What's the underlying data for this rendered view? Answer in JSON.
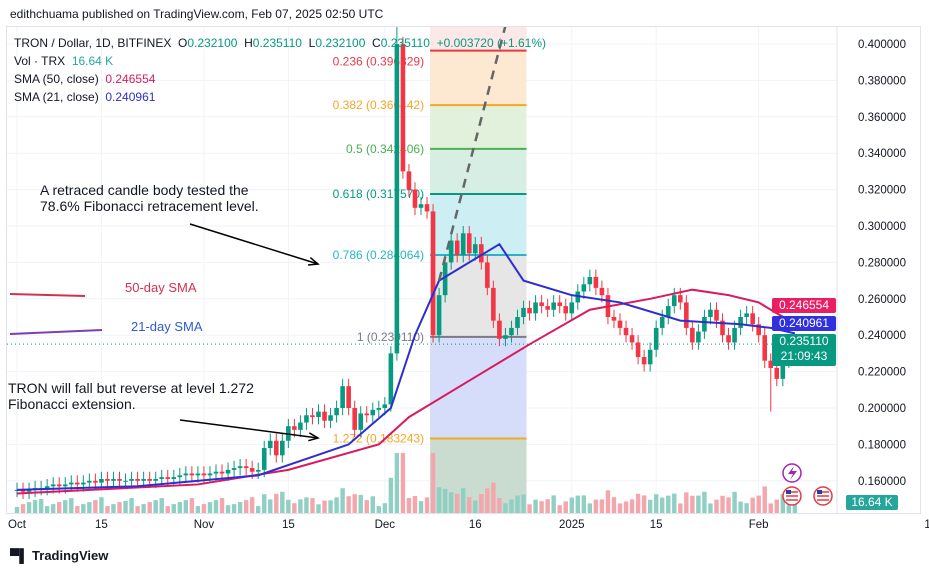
{
  "header": {
    "published": "edithchuama published on TradingView.com, Feb 07, 2025 02:50 UTC"
  },
  "legend": {
    "symbol": "TRON / Dollar, 1D, BITFINEX",
    "o_label": "O",
    "o": "0.232100",
    "h_label": "H",
    "h": "0.235110",
    "l_label": "L",
    "l": "0.232100",
    "c_label": "C",
    "c": "0.235110",
    "change": "+0.003720 (+1.61%)",
    "vol_label": "Vol · TRX",
    "vol": "16.64 K",
    "sma50_label": "SMA (50, close)",
    "sma50": "0.246554",
    "sma21_label": "SMA (21, close)",
    "sma21": "0.240961"
  },
  "price_tags": {
    "sma50": "0.246554",
    "sma21": "0.240961",
    "last": "0.235110",
    "countdown": "21:09:43",
    "volume": "16.64 K"
  },
  "annotations": {
    "fib_note_1": "A retraced candle body tested the",
    "fib_note_2": "78.6% Fibonacci retracement level.",
    "sma50": "50-day SMA",
    "sma21": "21-day SMA",
    "ext_note_1": "TRON will fall but reverse at level 1.272",
    "ext_note_2": "Fibonacci extension."
  },
  "footer": {
    "brand": "TradingView"
  },
  "colors": {
    "up": "#089981",
    "down": "#f23645",
    "sma50": "#d81b60",
    "sma21": "#2e2ed0",
    "grid": "#f0f3fa"
  },
  "icons": [
    "lightning-icon",
    "us-flag-icon",
    "us-flag-icon"
  ],
  "chart_data": {
    "type": "candlestick",
    "start_date": "2024-10-01",
    "ylim": [
      0.15,
      0.41
    ],
    "yticks": [
      "0.400000",
      "0.380000",
      "0.360000",
      "0.340000",
      "0.320000",
      "0.300000",
      "0.280000",
      "0.260000",
      "0.240000",
      "0.220000",
      "0.200000",
      "0.180000",
      "0.160000"
    ],
    "xticks": [
      {
        "label": "Oct",
        "day": 0
      },
      {
        "label": "15",
        "day": 14
      },
      {
        "label": "Nov",
        "day": 31
      },
      {
        "label": "15",
        "day": 45
      },
      {
        "label": "Dec",
        "day": 61
      },
      {
        "label": "16",
        "day": 76
      },
      {
        "label": "2025",
        "day": 92
      },
      {
        "label": "15",
        "day": 106
      },
      {
        "label": "Feb",
        "day": 123
      },
      {
        "label": "1",
        "day": 151
      }
    ],
    "close": [
      0.155,
      0.154,
      0.155,
      0.156,
      0.156,
      0.157,
      0.158,
      0.157,
      0.158,
      0.159,
      0.158,
      0.159,
      0.16,
      0.159,
      0.161,
      0.16,
      0.161,
      0.16,
      0.16,
      0.161,
      0.16,
      0.161,
      0.16,
      0.161,
      0.162,
      0.161,
      0.162,
      0.163,
      0.164,
      0.163,
      0.164,
      0.163,
      0.164,
      0.165,
      0.164,
      0.166,
      0.167,
      0.168,
      0.167,
      0.165,
      0.166,
      0.178,
      0.182,
      0.174,
      0.182,
      0.19,
      0.188,
      0.192,
      0.196,
      0.195,
      0.198,
      0.193,
      0.196,
      0.2,
      0.212,
      0.2,
      0.188,
      0.197,
      0.196,
      0.199,
      0.2,
      0.202,
      0.23,
      0.4,
      0.33,
      0.32,
      0.31,
      0.312,
      0.308,
      0.24,
      0.262,
      0.28,
      0.292,
      0.284,
      0.296,
      0.285,
      0.29,
      0.28,
      0.266,
      0.248,
      0.238,
      0.24,
      0.244,
      0.25,
      0.255,
      0.252,
      0.258,
      0.256,
      0.254,
      0.258,
      0.256,
      0.252,
      0.258,
      0.264,
      0.268,
      0.272,
      0.266,
      0.262,
      0.25,
      0.248,
      0.244,
      0.24,
      0.236,
      0.228,
      0.224,
      0.232,
      0.244,
      0.25,
      0.256,
      0.262,
      0.258,
      0.244,
      0.236,
      0.242,
      0.25,
      0.254,
      0.248,
      0.24,
      0.236,
      0.244,
      0.25,
      0.252,
      0.246,
      0.24,
      0.226,
      0.222,
      0.216,
      0.226,
      0.232,
      0.2351
    ],
    "sma21": [
      [
        0,
        0.155
      ],
      [
        20,
        0.157
      ],
      [
        40,
        0.163
      ],
      [
        55,
        0.18
      ],
      [
        62,
        0.2
      ],
      [
        66,
        0.24
      ],
      [
        70,
        0.27
      ],
      [
        80,
        0.29
      ],
      [
        84,
        0.27
      ],
      [
        92,
        0.262
      ],
      [
        100,
        0.258
      ],
      [
        110,
        0.248
      ],
      [
        120,
        0.246
      ],
      [
        125,
        0.244
      ],
      [
        129,
        0.241
      ]
    ],
    "sma50": [
      [
        0,
        0.153
      ],
      [
        30,
        0.158
      ],
      [
        45,
        0.166
      ],
      [
        60,
        0.18
      ],
      [
        65,
        0.195
      ],
      [
        75,
        0.215
      ],
      [
        85,
        0.235
      ],
      [
        95,
        0.254
      ],
      [
        105,
        0.26
      ],
      [
        112,
        0.265
      ],
      [
        118,
        0.262
      ],
      [
        123,
        0.258
      ],
      [
        126,
        0.252
      ],
      [
        129,
        0.2466
      ]
    ],
    "fib": {
      "start_day": 69,
      "end_day": 84,
      "levels": [
        {
          "ratio": "0.236",
          "price": 0.396329,
          "label": "0.236 (0.396329)",
          "color": "#e53946",
          "fill": "#fde8e8"
        },
        {
          "ratio": "0.382",
          "price": 0.366442,
          "label": "0.382 (0.366442)",
          "color": "#f5a623",
          "fill": "#fde9d2"
        },
        {
          "ratio": "0.5",
          "price": 0.342406,
          "label": "0.5 (0.342406)",
          "color": "#4caf50",
          "fill": "#e2f1dc"
        },
        {
          "ratio": "0.618",
          "price": 0.31757,
          "label": "0.618 (0.317570)",
          "color": "#089981",
          "fill": "#d6eee4"
        },
        {
          "ratio": "0.786",
          "price": 0.284064,
          "label": "0.786 (0.284064)",
          "color": "#26b4c8",
          "fill": "#cdeff4"
        },
        {
          "ratio": "1",
          "price": 0.23911,
          "label": "1 (0.239110)",
          "color": "#787b86",
          "fill": "#e6e6e6"
        },
        {
          "ratio": "1.272",
          "price": 0.183243,
          "label": "1.272 (0.183243)",
          "color": "#f5a623",
          "fill": "#d5ddfa"
        }
      ]
    }
  }
}
